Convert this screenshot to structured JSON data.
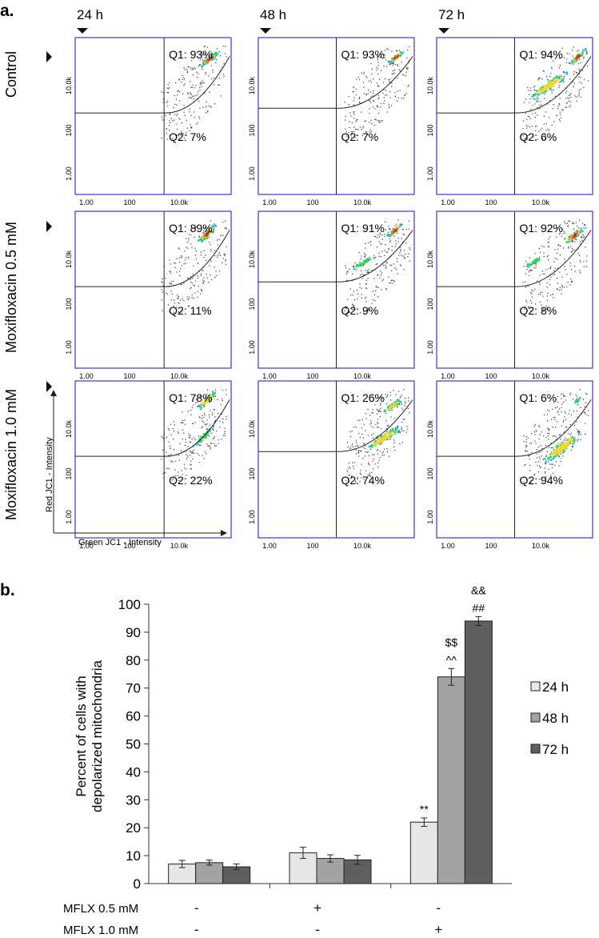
{
  "panel_a": {
    "label": "a.",
    "columns": [
      "24 h",
      "48 h",
      "72 h"
    ],
    "rows": [
      "Control",
      "Moxifloxacin 0.5 mM",
      "Moxifloxacin 1.0 mM"
    ],
    "axis_ticks": [
      "1.00",
      "100",
      "10.0k"
    ],
    "x_axis_label": "Green JC1 - Intensity",
    "y_axis_label": "Red JC1 - Intensity",
    "quadrants": [
      [
        {
          "q1": "Q1: 93%",
          "q2": "Q2: 7%"
        },
        {
          "q1": "Q1: 93%",
          "q2": "Q2: 7%"
        },
        {
          "q1": "Q1: 94%",
          "q2": "Q2: 6%"
        }
      ],
      [
        {
          "q1": "Q1: 89%",
          "q2": "Q2: 11%"
        },
        {
          "q1": "Q1: 91%",
          "q2": "Q2: 9%"
        },
        {
          "q1": "Q1: 92%",
          "q2": "Q2: 8%"
        }
      ],
      [
        {
          "q1": "Q1: 78%",
          "q2": "Q2: 22%"
        },
        {
          "q1": "Q1: 26%",
          "q2": "Q2: 74%"
        },
        {
          "q1": "Q1: 6%",
          "q2": "Q2: 94%"
        }
      ]
    ],
    "colors": {
      "frame": "#3a3ad0",
      "dots": "#333333",
      "gate": "#222222"
    }
  },
  "chart_data": {
    "label": "b.",
    "type": "bar",
    "categories": [
      "MFLX 0.5 mM - / MFLX 1.0 mM -",
      "MFLX 0.5 mM + / MFLX 1.0 mM -",
      "MFLX 0.5 mM - / MFLX 1.0 mM +"
    ],
    "series": [
      {
        "name": "24 h",
        "values": [
          7,
          11,
          22
        ],
        "errors": [
          1.3,
          2.0,
          1.5
        ],
        "color": "#e6e6e6"
      },
      {
        "name": "48 h",
        "values": [
          7.5,
          9,
          74
        ],
        "errors": [
          0.9,
          1.3,
          3.0
        ],
        "color": "#a3a3a3"
      },
      {
        "name": "72 h",
        "values": [
          6,
          8.5,
          94
        ],
        "errors": [
          1.0,
          1.6,
          1.6
        ],
        "color": "#5f5f5f"
      }
    ],
    "annotations": [
      {
        "category": 2,
        "series": 0,
        "text": "**"
      },
      {
        "category": 2,
        "series": 1,
        "text": "^^"
      },
      {
        "category": 2,
        "series": 1,
        "text": "$$"
      },
      {
        "category": 2,
        "series": 2,
        "text": "##"
      },
      {
        "category": 2,
        "series": 2,
        "text": "&&"
      }
    ],
    "ylabel_line1": "Percent of cells with",
    "ylabel_line2": "depolarized mitochondria",
    "ylim": [
      0,
      100
    ],
    "yticks": [
      0,
      10,
      20,
      30,
      40,
      50,
      60,
      70,
      80,
      90,
      100
    ],
    "treatment_rows": [
      {
        "label": "MFLX 0.5 mM",
        "marks": [
          "-",
          "+",
          "-"
        ]
      },
      {
        "label": "MFLX 1.0 mM",
        "marks": [
          "-",
          "-",
          "+"
        ]
      }
    ],
    "legend_position": "right",
    "grid": false
  }
}
